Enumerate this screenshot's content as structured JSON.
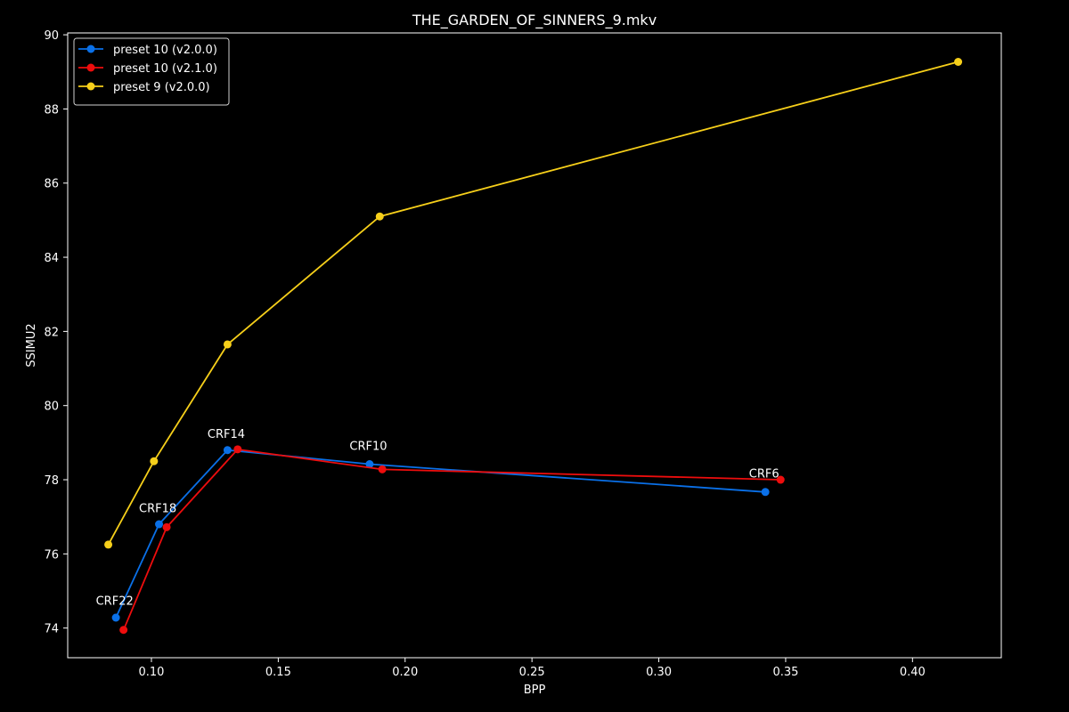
{
  "chart_data": {
    "type": "line",
    "title": "THE_GARDEN_OF_SINNERS_9.mkv",
    "xlabel": "BPP",
    "ylabel": "SSIMU2",
    "xlim": [
      0.067,
      0.435
    ],
    "ylim": [
      73.2,
      90.05
    ],
    "xticks": [
      0.1,
      0.15,
      0.2,
      0.25,
      0.3,
      0.35,
      0.4
    ],
    "xtick_labels": [
      "0.10",
      "0.15",
      "0.20",
      "0.25",
      "0.30",
      "0.35",
      "0.40"
    ],
    "yticks": [
      74,
      76,
      78,
      80,
      82,
      84,
      86,
      88,
      90
    ],
    "ytick_labels": [
      "74",
      "76",
      "78",
      "80",
      "82",
      "84",
      "86",
      "88",
      "90"
    ],
    "grid": false,
    "legend_position": "top-left",
    "series": [
      {
        "name": "preset 10 (v2.0.0)",
        "color": "#0a70e8",
        "x": [
          0.086,
          0.103,
          0.13,
          0.186,
          0.342
        ],
        "y": [
          74.28,
          76.8,
          78.8,
          78.42,
          77.67
        ]
      },
      {
        "name": "preset 10 (v2.1.0)",
        "color": "#ee0d0d",
        "x": [
          0.089,
          0.106,
          0.134,
          0.191,
          0.348
        ],
        "y": [
          73.95,
          76.72,
          78.82,
          78.28,
          78.0
        ]
      },
      {
        "name": "preset 9 (v2.0.0)",
        "color": "#f6cf1a",
        "x": [
          0.083,
          0.101,
          0.13,
          0.19,
          0.418
        ],
        "y": [
          76.25,
          78.5,
          81.65,
          85.1,
          89.27
        ]
      }
    ],
    "annotations": [
      {
        "text": "CRF22",
        "x": 0.0855,
        "y": 74.48
      },
      {
        "text": "CRF18",
        "x": 0.1025,
        "y": 76.98
      },
      {
        "text": "CRF14",
        "x": 0.1295,
        "y": 78.98
      },
      {
        "text": "CRF10",
        "x": 0.1855,
        "y": 78.66
      },
      {
        "text": "CRF6",
        "x": 0.3415,
        "y": 77.92
      }
    ]
  }
}
